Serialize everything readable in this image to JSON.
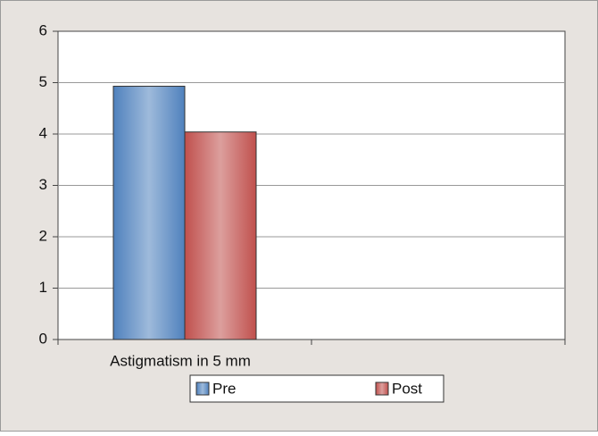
{
  "chart_data": {
    "type": "bar",
    "categories": [
      "Astigmatism in 5 mm",
      null
    ],
    "series": [
      {
        "name": "Pre",
        "color": "#4f81bd",
        "values": [
          4.93,
          null
        ]
      },
      {
        "name": "Post",
        "color": "#c0504d",
        "values": [
          4.04,
          null
        ]
      }
    ],
    "ylim": [
      0,
      6
    ],
    "yticks": [
      0,
      1,
      2,
      3,
      4,
      5,
      6
    ],
    "grid": true,
    "legend": "bottom"
  }
}
